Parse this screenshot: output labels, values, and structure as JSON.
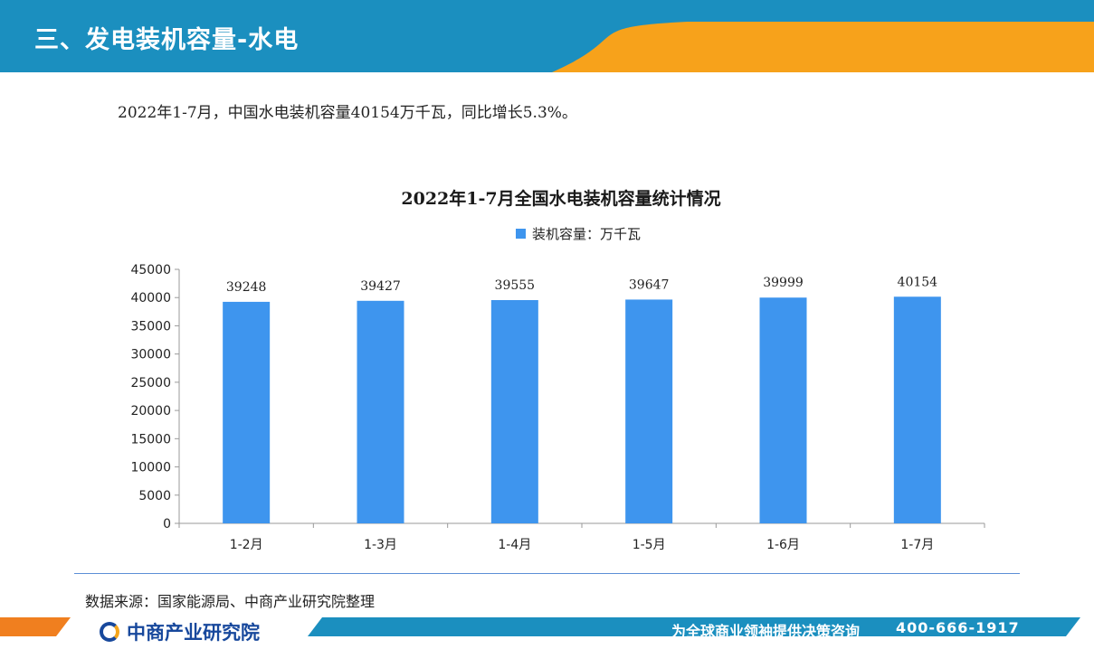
{
  "header": {
    "title": "三、发电装机容量-水电"
  },
  "summary": "2022年1-7月，中国水电装机容量40154万千瓦，同比增长5.3%。",
  "chart_data": {
    "type": "bar",
    "title": "2022年1-7月全国水电装机容量统计情况",
    "categories": [
      "1-2月",
      "1-3月",
      "1-4月",
      "1-5月",
      "1-6月",
      "1-7月"
    ],
    "series": [
      {
        "name": "装机容量：万千瓦",
        "values": [
          39248,
          39427,
          39555,
          39647,
          39999,
          40154
        ],
        "color": "#3e95ee"
      }
    ],
    "ylim": [
      0,
      45000
    ],
    "yticks": [
      0,
      5000,
      10000,
      15000,
      20000,
      25000,
      30000,
      35000,
      40000,
      45000
    ],
    "xlabel": "",
    "ylabel": "",
    "legend": "top",
    "grid": false
  },
  "source": "数据来源：国家能源局、中商产业研究院整理",
  "footer": {
    "logo_text": "中商产业研究院",
    "slogan": "为全球商业领袖提供决策咨询",
    "phone": "400-666-1917"
  },
  "colors": {
    "header_blue": "#1b8fbf",
    "accent_orange": "#f7a21b",
    "bar": "#3e95ee"
  }
}
